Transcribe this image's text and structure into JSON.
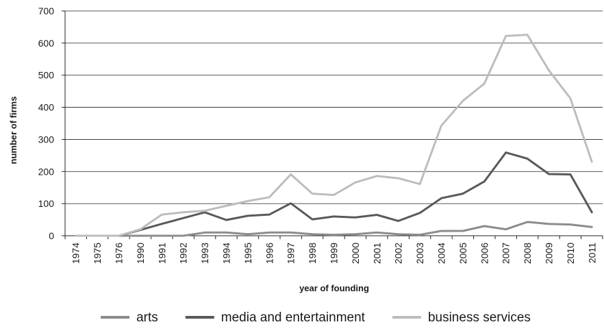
{
  "chart_data": {
    "type": "line",
    "title": "",
    "xlabel": "year of founding",
    "ylabel": "number of firms",
    "ylim": [
      0,
      700
    ],
    "yticks": [
      "0",
      "100",
      "200",
      "300",
      "400",
      "500",
      "600",
      "700"
    ],
    "grid": "horizontal",
    "legend_position": "bottom",
    "categories": [
      "1974",
      "1975",
      "1976",
      "1990",
      "1991",
      "1992",
      "1993",
      "1994",
      "1995",
      "1996",
      "1997",
      "1998",
      "1999",
      "2000",
      "2001",
      "2002",
      "2003",
      "2004",
      "2005",
      "2006",
      "2007",
      "2008",
      "2009",
      "2010",
      "2011"
    ],
    "series": [
      {
        "name": "arts",
        "color": "#8c8c8c",
        "values": [
          0,
          0,
          0,
          0,
          0,
          0,
          10,
          10,
          5,
          10,
          10,
          5,
          3,
          5,
          10,
          5,
          3,
          15,
          15,
          30,
          20,
          43,
          37,
          35,
          27
        ]
      },
      {
        "name": "media and entertainment",
        "color": "#595959",
        "values": [
          0,
          0,
          0,
          18,
          37,
          55,
          73,
          49,
          62,
          66,
          101,
          51,
          60,
          57,
          65,
          46,
          71,
          117,
          131,
          169,
          259,
          240,
          192,
          191,
          73
        ]
      },
      {
        "name": "business services",
        "color": "#bdbdbd",
        "values": [
          0,
          0,
          0,
          20,
          66,
          73,
          78,
          93,
          108,
          120,
          191,
          131,
          127,
          166,
          186,
          179,
          161,
          343,
          420,
          474,
          622,
          626,
          515,
          428,
          230
        ]
      }
    ]
  }
}
